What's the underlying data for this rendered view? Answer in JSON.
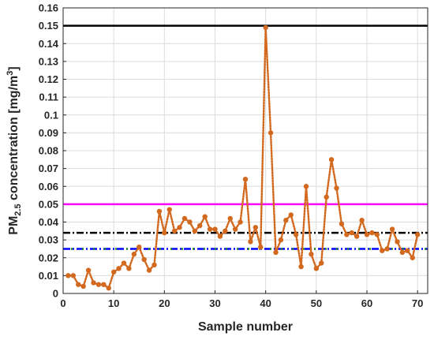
{
  "chart_data": {
    "type": "line",
    "title": "",
    "xlabel": "Sample number",
    "ylabel": {
      "prefix": "PM",
      "subscript": "2.5",
      "middle": " concentration [mg/m",
      "superscript": "3",
      "suffix": "]"
    },
    "xlim": [
      0,
      72
    ],
    "ylim": [
      0,
      0.16
    ],
    "xticks": [
      "0",
      "10",
      "20",
      "30",
      "40",
      "50",
      "60",
      "70"
    ],
    "yticks": [
      "0",
      "0.01",
      "0.02",
      "0.03",
      "0.04",
      "0.05",
      "0.06",
      "0.07",
      "0.08",
      "0.09",
      "0.1",
      "0.11",
      "0.12",
      "0.13",
      "0.14",
      "0.15",
      "0.16"
    ],
    "grid": true,
    "legend": "none",
    "series": [
      {
        "style": "dotted-with-markers",
        "color": "#d2691e",
        "x": [
          1,
          2,
          3,
          4,
          5,
          6,
          7,
          8,
          9,
          10,
          11,
          12,
          13,
          14,
          15,
          16,
          17,
          18,
          19,
          20,
          21,
          22,
          23,
          24,
          25,
          26,
          27,
          28,
          29,
          30,
          31,
          32,
          33,
          34,
          35,
          36,
          37,
          38,
          39,
          40,
          41,
          42,
          43,
          44,
          45,
          46,
          47,
          48,
          49,
          50,
          51,
          52,
          53,
          54,
          55,
          56,
          57,
          58,
          59,
          60,
          61,
          62,
          63,
          64,
          65,
          66,
          67,
          68,
          69,
          70
        ],
        "y": [
          0.01,
          0.01,
          0.005,
          0.004,
          0.013,
          0.006,
          0.005,
          0.005,
          0.003,
          0.012,
          0.014,
          0.017,
          0.014,
          0.022,
          0.026,
          0.019,
          0.013,
          0.016,
          0.046,
          0.034,
          0.047,
          0.035,
          0.037,
          0.042,
          0.04,
          0.035,
          0.038,
          0.043,
          0.036,
          0.036,
          0.032,
          0.035,
          0.042,
          0.036,
          0.04,
          0.064,
          0.029,
          0.037,
          0.026,
          0.149,
          0.09,
          0.023,
          0.03,
          0.041,
          0.044,
          0.033,
          0.015,
          0.06,
          0.022,
          0.014,
          0.017,
          0.054,
          0.075,
          0.059,
          0.039,
          0.033,
          0.034,
          0.032,
          0.041,
          0.033,
          0.034,
          0.033,
          0.024,
          0.025,
          0.036,
          0.029,
          0.023,
          0.024,
          0.02,
          0.033
        ]
      }
    ],
    "reference_lines": [
      {
        "y": 0.15,
        "color": "#000000",
        "style": "solid"
      },
      {
        "y": 0.05,
        "color": "#ff00ff",
        "style": "solid"
      },
      {
        "y": 0.034,
        "color": "#000000",
        "style": "dash-dot"
      },
      {
        "y": 0.025,
        "color": "#0000ff",
        "style": "dash-dot",
        "accent": "#228b22"
      }
    ]
  }
}
